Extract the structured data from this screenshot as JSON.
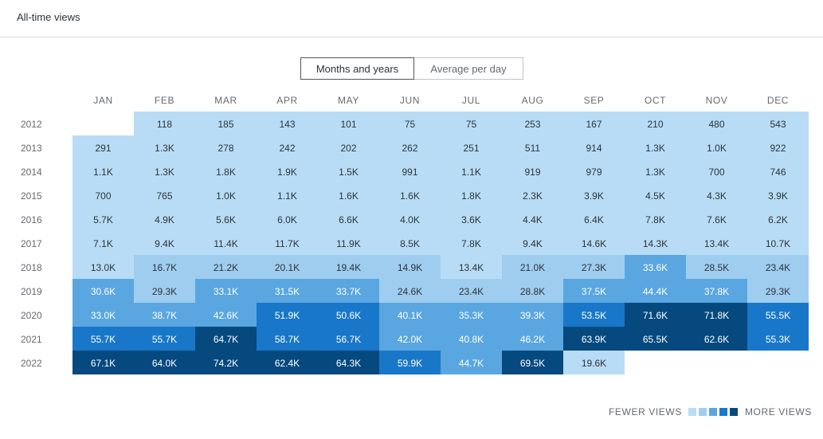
{
  "header": {
    "title": "All-time views"
  },
  "toggle": {
    "option_months": "Months and years",
    "option_average": "Average per day"
  },
  "legend": {
    "fewer": "FEWER VIEWS",
    "more": "MORE VIEWS",
    "colors": [
      "#b8dcf6",
      "#9fcdf0",
      "#5aa6e0",
      "#1977c9",
      "#05497f"
    ]
  },
  "chart_data": {
    "type": "heatmap",
    "title": "",
    "months": [
      "JAN",
      "FEB",
      "MAR",
      "APR",
      "MAY",
      "JUN",
      "JUL",
      "AUG",
      "SEP",
      "OCT",
      "NOV",
      "DEC"
    ],
    "years": [
      "2012",
      "2013",
      "2014",
      "2015",
      "2016",
      "2017",
      "2018",
      "2019",
      "2020",
      "2021",
      "2022"
    ],
    "views": [
      [
        null,
        "118",
        "185",
        "143",
        "101",
        "75",
        "75",
        "253",
        "167",
        "210",
        "480",
        "543"
      ],
      [
        "291",
        "1.3K",
        "278",
        "242",
        "202",
        "262",
        "251",
        "511",
        "914",
        "1.3K",
        "1.0K",
        "922"
      ],
      [
        "1.1K",
        "1.3K",
        "1.8K",
        "1.9K",
        "1.5K",
        "991",
        "1.1K",
        "919",
        "979",
        "1.3K",
        "700",
        "746"
      ],
      [
        "700",
        "765",
        "1.0K",
        "1.1K",
        "1.6K",
        "1.6K",
        "1.8K",
        "2.3K",
        "3.9K",
        "4.5K",
        "4.3K",
        "3.9K"
      ],
      [
        "5.7K",
        "4.9K",
        "5.6K",
        "6.0K",
        "6.6K",
        "4.0K",
        "3.6K",
        "4.4K",
        "6.4K",
        "7.8K",
        "7.6K",
        "6.2K"
      ],
      [
        "7.1K",
        "9.4K",
        "11.4K",
        "11.7K",
        "11.9K",
        "8.5K",
        "7.8K",
        "9.4K",
        "14.6K",
        "14.3K",
        "13.4K",
        "10.7K"
      ],
      [
        "13.0K",
        "16.7K",
        "21.2K",
        "20.1K",
        "19.4K",
        "14.9K",
        "13.4K",
        "21.0K",
        "27.3K",
        "33.6K",
        "28.5K",
        "23.4K"
      ],
      [
        "30.6K",
        "29.3K",
        "33.1K",
        "31.5K",
        "33.7K",
        "24.6K",
        "23.4K",
        "28.8K",
        "37.5K",
        "44.4K",
        "37.8K",
        "29.3K"
      ],
      [
        "33.0K",
        "38.7K",
        "42.6K",
        "51.9K",
        "50.6K",
        "40.1K",
        "35.3K",
        "39.3K",
        "53.5K",
        "71.6K",
        "71.8K",
        "55.5K"
      ],
      [
        "55.7K",
        "55.7K",
        "64.7K",
        "58.7K",
        "56.7K",
        "42.0K",
        "40.8K",
        "46.2K",
        "63.9K",
        "65.5K",
        "62.6K",
        "55.3K"
      ],
      [
        "67.1K",
        "64.0K",
        "74.2K",
        "62.4K",
        "64.3K",
        "59.9K",
        "44.7K",
        "69.5K",
        "19.6K",
        null,
        null,
        null
      ]
    ],
    "levels": [
      [
        null,
        0,
        0,
        0,
        0,
        0,
        0,
        0,
        0,
        0,
        0,
        0
      ],
      [
        0,
        0,
        0,
        0,
        0,
        0,
        0,
        0,
        0,
        0,
        0,
        0
      ],
      [
        0,
        0,
        0,
        0,
        0,
        0,
        0,
        0,
        0,
        0,
        0,
        0
      ],
      [
        0,
        0,
        0,
        0,
        0,
        0,
        0,
        0,
        0,
        0,
        0,
        0
      ],
      [
        0,
        0,
        0,
        0,
        0,
        0,
        0,
        0,
        0,
        0,
        0,
        0
      ],
      [
        0,
        0,
        0,
        0,
        0,
        0,
        0,
        0,
        0,
        0,
        0,
        0
      ],
      [
        0,
        1,
        1,
        1,
        1,
        1,
        0,
        1,
        1,
        2,
        1,
        1
      ],
      [
        2,
        1,
        2,
        2,
        2,
        1,
        1,
        1,
        2,
        2,
        2,
        1
      ],
      [
        2,
        2,
        2,
        3,
        3,
        2,
        2,
        2,
        3,
        4,
        4,
        3
      ],
      [
        3,
        3,
        4,
        3,
        3,
        2,
        2,
        2,
        4,
        4,
        4,
        3
      ],
      [
        4,
        4,
        4,
        4,
        4,
        3,
        2,
        4,
        0,
        null,
        null,
        null
      ]
    ]
  }
}
